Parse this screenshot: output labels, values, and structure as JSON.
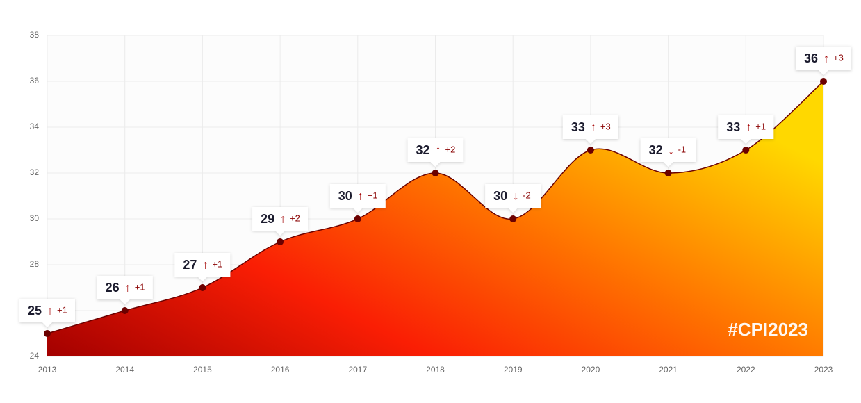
{
  "chart_data": {
    "type": "area",
    "categories": [
      "2013",
      "2014",
      "2015",
      "2016",
      "2017",
      "2018",
      "2019",
      "2020",
      "2021",
      "2022",
      "2023"
    ],
    "values": [
      25,
      26,
      27,
      29,
      30,
      32,
      30,
      33,
      32,
      33,
      36
    ],
    "arrows": [
      "↑",
      "↑",
      "↑",
      "↑",
      "↑",
      "↑",
      "↓",
      "↑",
      "↓",
      "↑",
      "↑"
    ],
    "deltas": [
      "+1",
      "+1",
      "+1",
      "+2",
      "+1",
      "+2",
      "-2",
      "+3",
      "-1",
      "+1",
      "+3"
    ],
    "ylim": [
      24,
      38
    ],
    "yticks": [
      24,
      26,
      28,
      30,
      32,
      34,
      36,
      38
    ],
    "grid": true,
    "colors": [
      "#a30000",
      "#fa1e04",
      "#ff7a00",
      "#ffd800"
    ],
    "line_color": "#6b0000",
    "watermark": "#CPI2023"
  }
}
